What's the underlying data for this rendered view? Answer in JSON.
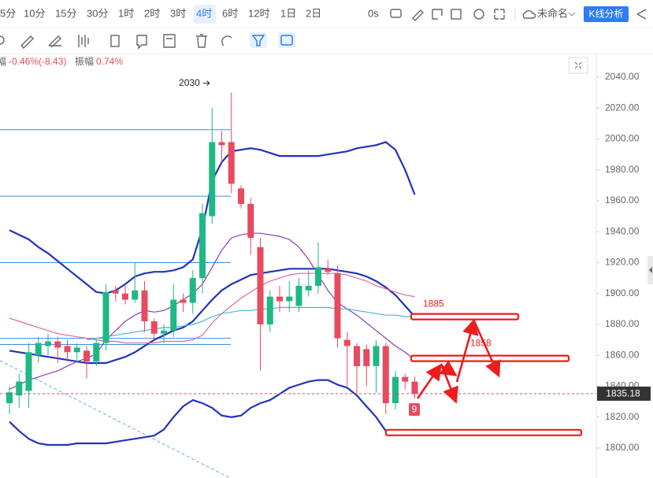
{
  "toolbar": {
    "intervals": [
      "5分",
      "10分",
      "15分",
      "30分",
      "1时",
      "2时",
      "3时",
      "4时",
      "6时",
      "12时",
      "1日",
      "2日"
    ],
    "active": "4时",
    "timer": "0s",
    "layout_name": "未命名",
    "analysis_button": "K线分析"
  },
  "info": {
    "change_label": "幅",
    "change_value": "-0.46%(-8.43)",
    "amplitude_label": "振幅",
    "amplitude_value": "0.74%"
  },
  "chart_data": {
    "type": "candlestick",
    "up_color": "#1fb884",
    "down_color": "#e84a5f",
    "ylim": [
      1780.6,
      2045.1
    ],
    "yticks": [
      {
        "value": 2040,
        "label": "2040.00"
      },
      {
        "value": 2020,
        "label": "2020.00"
      },
      {
        "value": 2000,
        "label": "2000.00"
      },
      {
        "value": 1980,
        "label": "1980.00"
      },
      {
        "value": 1960,
        "label": "1960.00"
      },
      {
        "value": 1940,
        "label": "1940.00"
      },
      {
        "value": 1920,
        "label": "1920.00"
      },
      {
        "value": 1900,
        "label": "1900.00"
      },
      {
        "value": 1880,
        "label": "1880.00"
      },
      {
        "value": 1860,
        "label": "1860.00"
      },
      {
        "value": 1840,
        "label": "1840.00"
      },
      {
        "value": 1820,
        "label": "1820.00"
      },
      {
        "value": 1800,
        "label": "1800.00"
      }
    ],
    "candles": {
      "open": [
        1829,
        1834,
        1837,
        1860,
        1866,
        1869,
        1866,
        1862,
        1863,
        1856,
        1868,
        1902,
        1900,
        1896,
        1902,
        1882,
        1874,
        1876,
        1896,
        1894,
        1910,
        1950,
        1998,
        1998,
        1968,
        1958,
        1930,
        1880,
        1898,
        1895,
        1892,
        1902,
        1905,
        1916,
        1913,
        1870,
        1866,
        1864,
        1853,
        1866,
        1829,
        1846,
        1843
      ],
      "high": [
        1840,
        1848,
        1868,
        1872,
        1874,
        1872,
        1870,
        1868,
        1866,
        1870,
        1906,
        1905,
        1905,
        1920,
        1908,
        1884,
        1880,
        1906,
        1900,
        1915,
        1958,
        2020,
        2005,
        2030,
        1970,
        1962,
        1936,
        1902,
        1905,
        1908,
        1910,
        1915,
        1933,
        1922,
        1918,
        1875,
        1868,
        1867,
        1870,
        1868,
        1850,
        1848,
        1846
      ],
      "low": [
        1822,
        1826,
        1826,
        1855,
        1860,
        1855,
        1856,
        1855,
        1845,
        1853,
        1863,
        1895,
        1893,
        1894,
        1875,
        1870,
        1868,
        1872,
        1888,
        1887,
        1900,
        1945,
        1985,
        1965,
        1955,
        1925,
        1850,
        1875,
        1888,
        1888,
        1888,
        1898,
        1900,
        1912,
        1865,
        1840,
        1835,
        1840,
        1836,
        1822,
        1825,
        1838,
        1832
      ],
      "close": [
        1836,
        1843,
        1862,
        1868,
        1869,
        1865,
        1862,
        1865,
        1856,
        1868,
        1901,
        1900,
        1896,
        1902,
        1882,
        1874,
        1876,
        1896,
        1894,
        1910,
        1952,
        1998,
        1996,
        1971,
        1958,
        1936,
        1880,
        1898,
        1895,
        1898,
        1905,
        1905,
        1917,
        1914,
        1871,
        1866,
        1853,
        1853,
        1866,
        1829,
        1846,
        1843,
        1835
      ]
    },
    "lines": [
      {
        "color": "#2233bb",
        "width": 2.2,
        "values": [
          1941,
          1938,
          1935,
          1930,
          1926,
          1921,
          1916,
          1911,
          1906,
          1901,
          1900,
          1902,
          1906,
          1911,
          1913,
          1914,
          1914,
          1915,
          1917,
          1922,
          1942,
          1973,
          1985,
          1992,
          1993,
          1994,
          1993,
          1991,
          1989,
          1989,
          1989,
          1989,
          1989,
          1990,
          1991,
          1992,
          1994,
          1995,
          1996,
          1998,
          1993,
          1980,
          1964
        ]
      },
      {
        "color": "#2233bb",
        "width": 2.2,
        "values": [
          1863,
          1862,
          1861,
          1860,
          1859,
          1858,
          1857,
          1856,
          1855,
          1855,
          1855,
          1857,
          1859,
          1862,
          1866,
          1870,
          1873,
          1876,
          1878,
          1882,
          1889,
          1896,
          1902,
          1906,
          1909,
          1912,
          1913,
          1914,
          1915,
          1916,
          1916,
          1916,
          1916,
          1916,
          1915,
          1914,
          1913,
          1911,
          1908,
          1904,
          1899,
          1892,
          1885
        ]
      },
      {
        "color": "#2233bb",
        "width": 2.2,
        "values": [
          1817,
          1811,
          1806,
          1803,
          1802,
          1802,
          1802,
          1803,
          1803,
          1803,
          1803,
          1804,
          1805,
          1806,
          1807,
          1808,
          1812,
          1820,
          1827,
          1831,
          1829,
          1826,
          1821,
          1820,
          1821,
          1826,
          1829,
          1831,
          1835,
          1839,
          1841,
          1843,
          1844,
          1844,
          1841,
          1839,
          1834,
          1827,
          1820,
          1811,
          1809,
          1810,
          1812
        ]
      },
      {
        "color": "#8a3fb5",
        "width": 1.2,
        "values": [
          1838,
          1841,
          1844,
          1846,
          1848,
          1850,
          1853,
          1856,
          1858,
          1861,
          1870,
          1876,
          1882,
          1886,
          1889,
          1888,
          1889,
          1892,
          1896,
          1900,
          1906,
          1917,
          1928,
          1936,
          1938,
          1939,
          1939,
          1938,
          1937,
          1935,
          1930,
          1922,
          1912,
          1902,
          1894,
          1890,
          1886,
          1881,
          1876,
          1871,
          1866,
          1862,
          1857
        ]
      },
      {
        "color": "#e066a0",
        "width": 1.2,
        "values": [
          1884,
          1882,
          1880,
          1878,
          1876,
          1874,
          1873,
          1872,
          1871,
          1870,
          1869,
          1869,
          1868,
          1868,
          1868,
          1868,
          1869,
          1869,
          1869,
          1870,
          1873,
          1881,
          1887,
          1892,
          1897,
          1901,
          1905,
          1908,
          1910,
          1912,
          1913,
          1913,
          1913,
          1913,
          1913,
          1912,
          1910,
          1908,
          1905,
          1903,
          1901,
          1899,
          1898
        ]
      },
      {
        "color": "#45b8d8",
        "width": 1.2,
        "values": [
          null,
          null,
          null,
          null,
          null,
          null,
          null,
          null,
          1870,
          1871,
          1872,
          1873,
          1874,
          1875,
          1876,
          1877,
          1878,
          1878,
          1879,
          1880,
          1882,
          1885,
          1887,
          1888,
          1889,
          1889,
          1890,
          1890,
          1891,
          1891,
          1891,
          1891,
          1891,
          1891,
          1890,
          1890,
          1889,
          1888,
          1887,
          1886,
          1886,
          1885,
          1885
        ]
      }
    ],
    "hlines": [
      2006,
      1963,
      1920,
      1871,
      1867
    ],
    "hline_color": "#3a8ee6",
    "levels": [
      1885,
      1858,
      1810
    ],
    "level_color": "#ee1c1c",
    "last_price": 1835.18,
    "badge": 9
  }
}
